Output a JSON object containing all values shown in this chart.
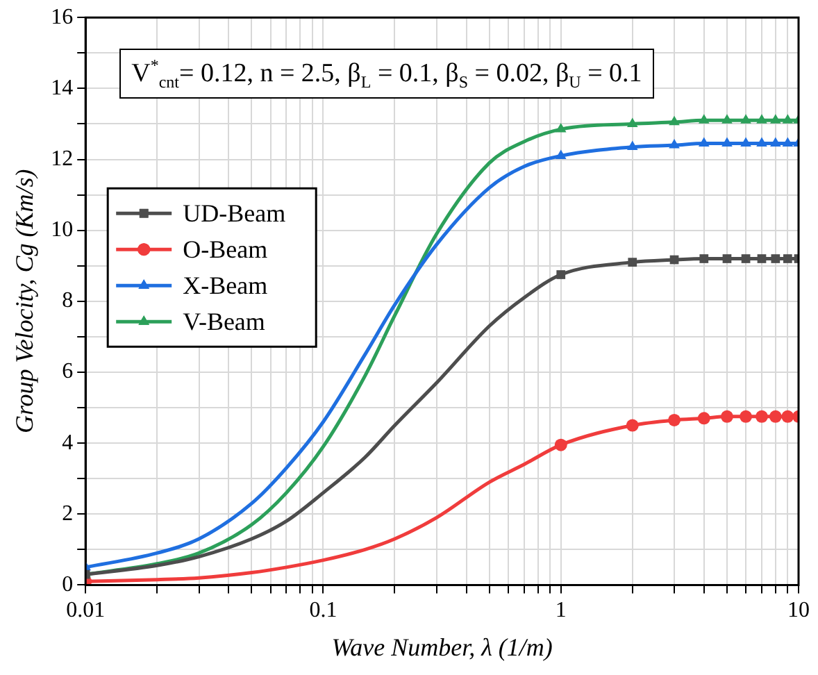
{
  "chart_data": {
    "type": "line",
    "xlabel": "Wave Number, λ (1/m)",
    "ylabel": "Group Velocity, Cg (Km/s)",
    "annotations": [
      "V$^{*}$$_{cnt}$= 0.12, n = 2.5, β$_{L}$ = 0.1, β$_{S}$ = 0.02, β$_{U}$ = 0.1"
    ],
    "x": [
      0.01,
      0.02,
      0.03,
      0.05,
      0.07,
      0.1,
      0.15,
      0.2,
      0.3,
      0.5,
      0.7,
      1,
      2,
      3,
      4,
      5,
      6,
      7,
      8,
      9,
      10
    ],
    "series": [
      {
        "name": "UD-Beam",
        "color": "#4d4d4d",
        "marker": "square",
        "values": [
          0.3,
          0.55,
          0.8,
          1.3,
          1.8,
          2.6,
          3.6,
          4.5,
          5.7,
          7.3,
          8.1,
          8.75,
          9.1,
          9.17,
          9.2,
          9.2,
          9.2,
          9.2,
          9.2,
          9.2,
          9.2
        ]
      },
      {
        "name": "O-Beam",
        "color": "#f03c3c",
        "marker": "circle",
        "values": [
          0.1,
          0.15,
          0.2,
          0.35,
          0.5,
          0.7,
          1.0,
          1.3,
          1.9,
          2.9,
          3.4,
          3.95,
          4.5,
          4.65,
          4.7,
          4.75,
          4.75,
          4.75,
          4.75,
          4.75,
          4.75
        ]
      },
      {
        "name": "X-Beam",
        "color": "#1f6fe0",
        "marker": "triangle",
        "values": [
          0.5,
          0.9,
          1.3,
          2.3,
          3.3,
          4.6,
          6.5,
          7.9,
          9.6,
          11.2,
          11.8,
          12.1,
          12.35,
          12.4,
          12.45,
          12.45,
          12.45,
          12.45,
          12.45,
          12.45,
          12.45
        ]
      },
      {
        "name": "V-Beam",
        "color": "#2ca05a",
        "marker": "triangle",
        "values": [
          0.3,
          0.6,
          0.9,
          1.7,
          2.6,
          3.9,
          5.9,
          7.6,
          9.9,
          11.9,
          12.5,
          12.85,
          13.0,
          13.05,
          13.1,
          13.1,
          13.1,
          13.1,
          13.1,
          13.1,
          13.1
        ]
      }
    ],
    "log": "x",
    "xlim": [
      0.01,
      10
    ],
    "xticks": [
      0.01,
      {
        "value": 0.02,
        "label": null
      },
      {
        "value": 0.03,
        "label": null
      },
      {
        "value": 0.04,
        "label": null
      },
      {
        "value": 0.05,
        "label": null
      },
      {
        "value": 0.06,
        "label": null
      },
      {
        "value": 0.07,
        "label": null
      },
      {
        "value": 0.08,
        "label": null
      },
      {
        "value": 0.09,
        "label": null
      },
      0.1,
      {
        "value": 0.2,
        "label": null
      },
      {
        "value": 0.3,
        "label": null
      },
      {
        "value": 0.4,
        "label": null
      },
      {
        "value": 0.5,
        "label": null
      },
      {
        "value": 0.6,
        "label": null
      },
      {
        "value": 0.7,
        "label": null
      },
      {
        "value": 0.8,
        "label": null
      },
      {
        "value": 0.9,
        "label": null
      },
      1,
      {
        "value": 2,
        "label": null
      },
      {
        "value": 3,
        "label": null
      },
      {
        "value": 4,
        "label": null
      },
      {
        "value": 5,
        "label": null
      },
      {
        "value": 6,
        "label": null
      },
      {
        "value": 7,
        "label": null
      },
      {
        "value": 8,
        "label": null
      },
      {
        "value": 9,
        "label": null
      },
      10
    ],
    "ylim": [
      0,
      16
    ],
    "yticks": [
      0,
      {
        "value": 1,
        "label": null
      },
      2,
      {
        "value": 3,
        "label": null
      },
      4,
      {
        "value": 5,
        "label": null
      },
      6,
      {
        "value": 7,
        "label": null
      },
      8,
      {
        "value": 9,
        "label": null
      },
      10,
      {
        "value": 11,
        "label": null
      },
      12,
      {
        "value": 13,
        "label": null
      },
      14,
      {
        "value": 15,
        "label": null
      },
      16
    ],
    "grid": true,
    "legend": "left",
    "line_style": "solid"
  }
}
